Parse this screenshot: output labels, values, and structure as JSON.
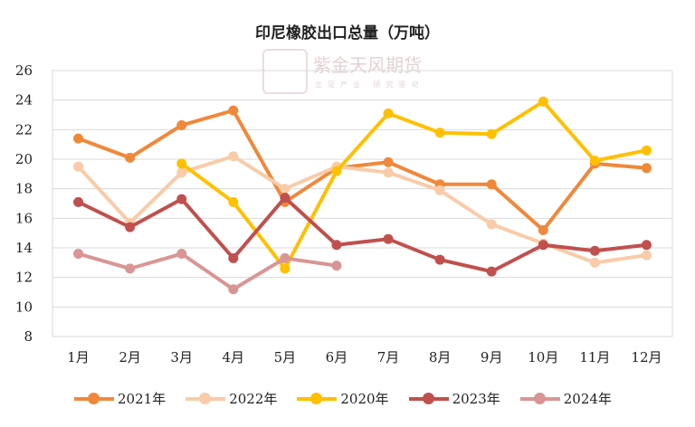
{
  "chart_data": {
    "type": "line",
    "title": "印尼橡胶出口总量（万吨）",
    "watermark": {
      "name": "紫金天风期货",
      "sub": "立足产业 研究驱动",
      "logo": "紫金天风"
    },
    "categories": [
      "1月",
      "2月",
      "3月",
      "4月",
      "5月",
      "6月",
      "7月",
      "8月",
      "9月",
      "10月",
      "11月",
      "12月"
    ],
    "ylim": [
      8,
      26
    ],
    "yticks": [
      "8",
      "10",
      "12",
      "14",
      "16",
      "18",
      "20",
      "22",
      "24",
      "26"
    ],
    "grid": "horizontal",
    "legend_position": "bottom",
    "series": [
      {
        "name": "2021年",
        "color": "#F0883A",
        "values": [
          21.4,
          20.1,
          22.3,
          23.3,
          17.1,
          19.4,
          19.8,
          18.3,
          18.3,
          15.2,
          19.7,
          19.4
        ]
      },
      {
        "name": "2022年",
        "color": "#F9CBA8",
        "values": [
          19.5,
          15.7,
          19.1,
          20.2,
          18.0,
          19.5,
          19.1,
          17.9,
          15.6,
          14.3,
          13.0,
          13.5
        ]
      },
      {
        "name": "2020年",
        "color": "#FFC000",
        "values": [
          null,
          null,
          19.7,
          17.1,
          12.6,
          19.2,
          23.1,
          21.8,
          21.7,
          23.9,
          19.9,
          20.6
        ]
      },
      {
        "name": "2023年",
        "color": "#C0504D",
        "values": [
          17.1,
          15.4,
          17.3,
          13.3,
          17.4,
          14.2,
          14.6,
          13.2,
          12.4,
          14.2,
          13.8,
          14.2
        ]
      },
      {
        "name": "2024年",
        "color": "#D99594",
        "values": [
          13.6,
          12.6,
          13.6,
          11.2,
          13.3,
          12.8,
          null,
          null,
          null,
          null,
          null,
          null
        ]
      }
    ]
  }
}
